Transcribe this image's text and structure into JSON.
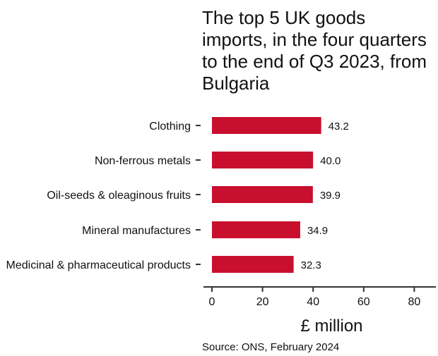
{
  "chart_data": {
    "type": "bar",
    "orientation": "horizontal",
    "title": "The top 5 UK goods imports, in the four quarters to the end of Q3 2023, from Bulgaria",
    "categories": [
      "Clothing",
      "Non-ferrous metals",
      "Oil-seeds & oleaginous fruits",
      "Mineral manufactures",
      "Medicinal & pharmaceutical products"
    ],
    "values": [
      43.2,
      40.0,
      39.9,
      34.9,
      32.3
    ],
    "value_labels": [
      "43.2",
      "40.0",
      "39.9",
      "34.9",
      "32.3"
    ],
    "xlabel": "£ million",
    "ylabel": "",
    "xlim": [
      0,
      88
    ],
    "xticks": [
      0,
      20,
      40,
      60,
      80
    ],
    "grid": false,
    "bar_color": "#c8102e",
    "source": "Source: ONS, February 2024"
  }
}
